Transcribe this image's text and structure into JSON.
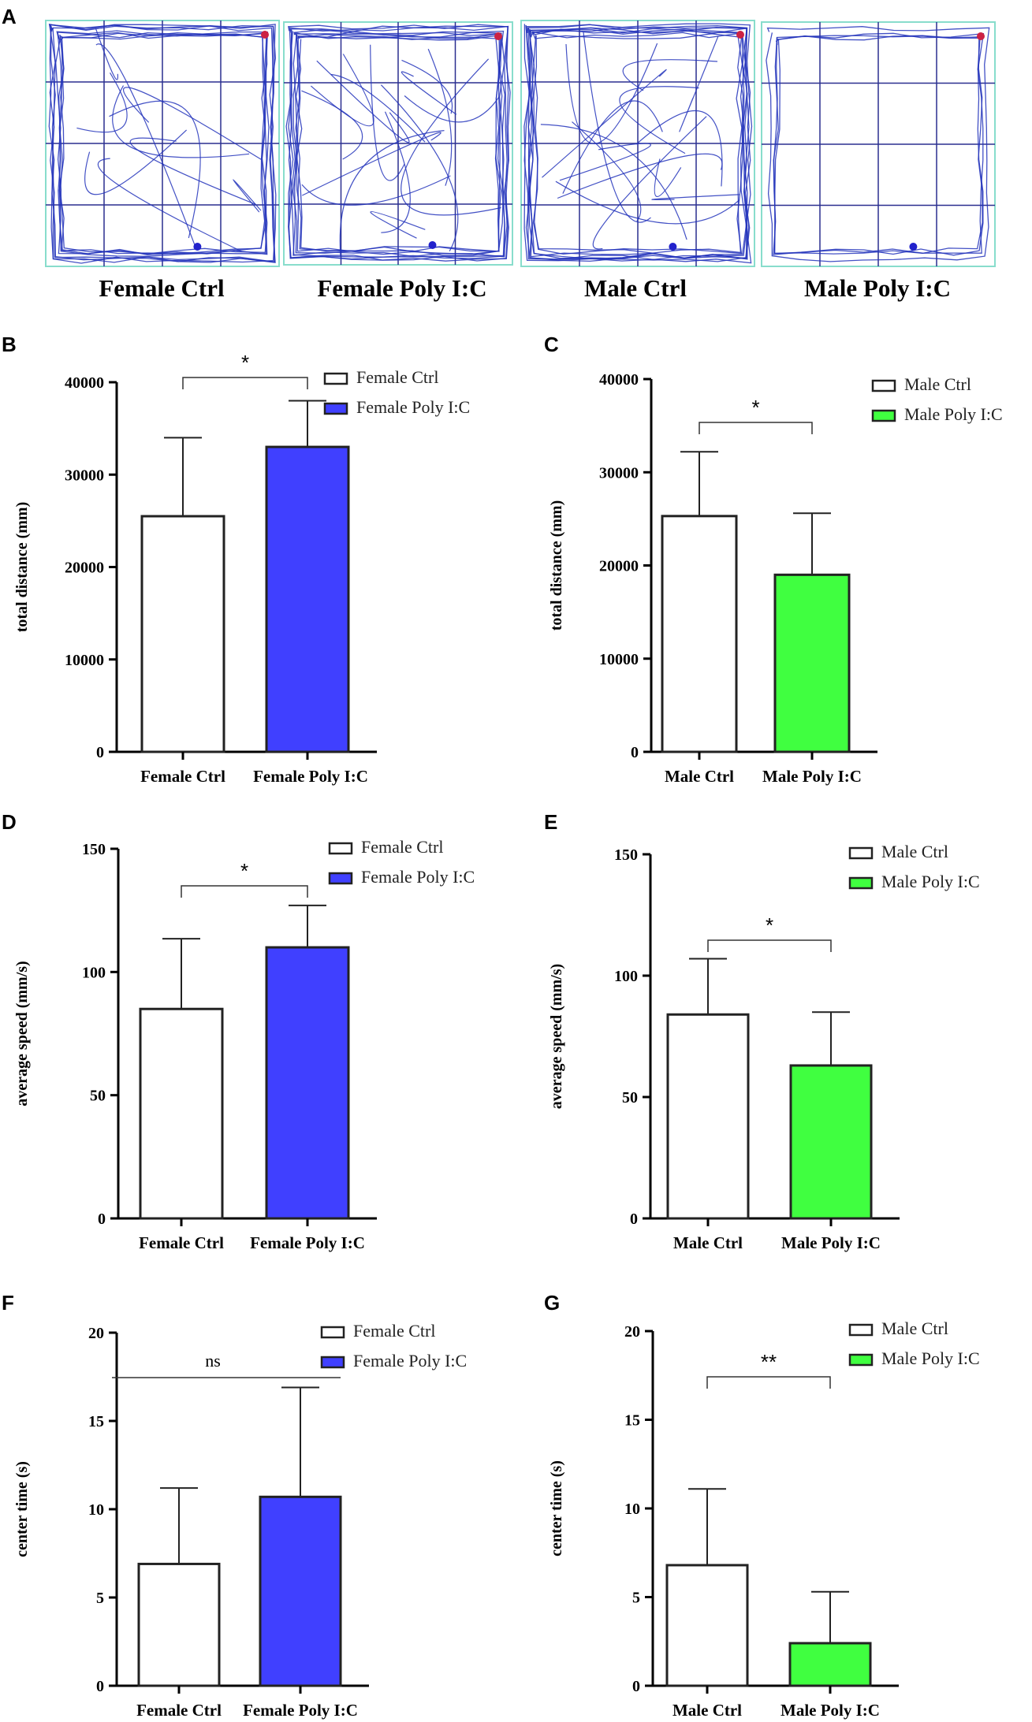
{
  "colors": {
    "track": "#2233bb",
    "arena_border": "#88ddcc",
    "grid": "#2a2f8f",
    "female_poly": "#4040ff",
    "male_poly": "#40ff40",
    "ctrl": "#ffffff"
  },
  "panel_a": {
    "label": "A",
    "arenas": [
      {
        "name": "Female Ctrl"
      },
      {
        "name": "Female Poly I:C"
      },
      {
        "name": "Male Ctrl"
      },
      {
        "name": "Male Poly I:C"
      }
    ]
  },
  "chart_data": [
    {
      "panel": "B",
      "type": "bar",
      "categories": [
        "Female Ctrl",
        "Female Poly I:C"
      ],
      "values": [
        25500,
        33000
      ],
      "errors": [
        8500,
        5000
      ],
      "colors": [
        "#ffffff",
        "#4040ff"
      ],
      "ylabel": "total distance (mm)",
      "ylim": [
        0,
        40000
      ],
      "yticks": [
        "0",
        "10000",
        "20000",
        "30000",
        "40000"
      ],
      "significance": "*",
      "legend": [
        "Female Ctrl",
        "Female Poly I:C"
      ],
      "legend_position": "top-right"
    },
    {
      "panel": "C",
      "type": "bar",
      "categories": [
        "Male Ctrl",
        "Male Poly I:C"
      ],
      "values": [
        25300,
        19000
      ],
      "errors": [
        6900,
        6600
      ],
      "colors": [
        "#ffffff",
        "#40ff40"
      ],
      "ylabel": "total distance (mm)",
      "ylim": [
        0,
        40000
      ],
      "yticks": [
        "0",
        "10000",
        "20000",
        "30000",
        "40000"
      ],
      "significance": "*",
      "legend": [
        "Male Ctrl",
        "Male Poly I:C"
      ],
      "legend_position": "top-right"
    },
    {
      "panel": "D",
      "type": "bar",
      "categories": [
        "Female Ctrl",
        "Female Poly I:C"
      ],
      "values": [
        85,
        110
      ],
      "errors": [
        28.5,
        17
      ],
      "colors": [
        "#ffffff",
        "#4040ff"
      ],
      "ylabel": "average speed (mm/s)",
      "ylim": [
        0,
        150
      ],
      "yticks": [
        "0",
        "50",
        "100",
        "150"
      ],
      "significance": "*",
      "legend": [
        "Female Ctrl",
        "Female Poly I:C"
      ],
      "legend_position": "top-right"
    },
    {
      "panel": "E",
      "type": "bar",
      "categories": [
        "Male Ctrl",
        "Male Poly I:C"
      ],
      "values": [
        84,
        63
      ],
      "errors": [
        23,
        22
      ],
      "colors": [
        "#ffffff",
        "#40ff40"
      ],
      "ylabel": "average speed (mm/s)",
      "ylim": [
        0,
        150
      ],
      "yticks": [
        "0",
        "50",
        "100",
        "150"
      ],
      "significance": "*",
      "legend": [
        "Male Ctrl",
        "Male Poly I:C"
      ],
      "legend_position": "top-right"
    },
    {
      "panel": "F",
      "type": "bar",
      "categories": [
        "Female Ctrl",
        "Female Poly I:C"
      ],
      "values": [
        6.9,
        10.7
      ],
      "errors": [
        4.3,
        6.2
      ],
      "colors": [
        "#ffffff",
        "#4040ff"
      ],
      "ylabel": "center time (s)",
      "ylim": [
        0,
        20
      ],
      "yticks": [
        "0",
        "5",
        "10",
        "15",
        "20"
      ],
      "significance": "ns",
      "legend": [
        "Female Ctrl",
        "Female Poly I:C"
      ],
      "legend_position": "top-right"
    },
    {
      "panel": "G",
      "type": "bar",
      "categories": [
        "Male Ctrl",
        "Male Poly I:C"
      ],
      "values": [
        6.8,
        2.4
      ],
      "errors": [
        4.3,
        2.9
      ],
      "colors": [
        "#ffffff",
        "#40ff40"
      ],
      "ylabel": "center time (s)",
      "ylim": [
        0,
        20
      ],
      "yticks": [
        "0",
        "5",
        "10",
        "15",
        "20"
      ],
      "significance": "**",
      "legend": [
        "Male Ctrl",
        "Male Poly I:C"
      ],
      "legend_position": "top-right"
    }
  ]
}
